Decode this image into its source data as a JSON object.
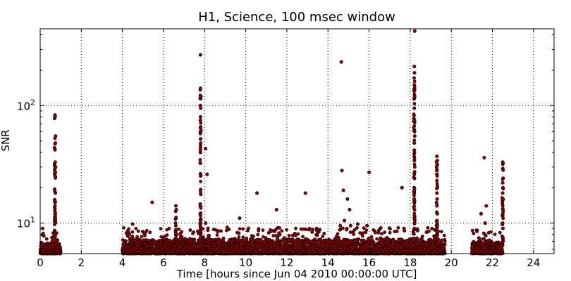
{
  "chart_data": {
    "type": "scatter",
    "title": "H1, Science, 100 msec window",
    "xlabel": "Time [hours since Jun 04 2010 00:00:00 UTC]",
    "ylabel": "SNR",
    "xlim": [
      0,
      25
    ],
    "ylim": [
      5.5,
      450
    ],
    "yscale": "log",
    "grid": true,
    "x_ticks": [
      0,
      2,
      4,
      6,
      8,
      10,
      12,
      14,
      16,
      18,
      20,
      22,
      24
    ],
    "x_tick_labels": [
      "0",
      "2",
      "4",
      "6",
      "8",
      "10",
      "12",
      "14",
      "16",
      "18",
      "20",
      "22",
      "24"
    ],
    "y_ticks": [
      10,
      100
    ],
    "y_tick_labels": [
      {
        "base": "10",
        "exp": "1"
      },
      {
        "base": "10",
        "exp": "2"
      }
    ],
    "marker_fill": "#8b0000",
    "marker_edge": "#000000",
    "dense_background": [
      {
        "x_start": 0.0,
        "x_end": 1.0,
        "snr_floor": 5.5,
        "snr_top": 6.8
      },
      {
        "x_start": 4.0,
        "x_end": 19.7,
        "snr_floor": 5.5,
        "snr_top": 7.3
      },
      {
        "x_start": 21.0,
        "x_end": 22.5,
        "snr_floor": 5.5,
        "snr_top": 7.0
      }
    ],
    "vertical_clusters": [
      {
        "x": 0.72,
        "snr_min": 7,
        "snr_max": 82
      },
      {
        "x": 6.6,
        "snr_min": 7,
        "snr_max": 14
      },
      {
        "x": 7.8,
        "snr_min": 7,
        "snr_max": 140
      },
      {
        "x": 18.2,
        "snr_min": 7,
        "snr_max": 210
      },
      {
        "x": 19.3,
        "snr_min": 7,
        "snr_max": 37
      },
      {
        "x": 22.5,
        "snr_min": 7,
        "snr_max": 33
      }
    ],
    "points": [
      {
        "x": 0.72,
        "y": 83
      },
      {
        "x": 0.73,
        "y": 80
      },
      {
        "x": 0.75,
        "y": 55
      },
      {
        "x": 0.74,
        "y": 48
      },
      {
        "x": 0.72,
        "y": 42
      },
      {
        "x": 0.73,
        "y": 33
      },
      {
        "x": 0.75,
        "y": 30
      },
      {
        "x": 0.74,
        "y": 27
      },
      {
        "x": 0.73,
        "y": 25
      },
      {
        "x": 0.74,
        "y": 18
      },
      {
        "x": 0.72,
        "y": 14
      },
      {
        "x": 0.73,
        "y": 11
      },
      {
        "x": 0.74,
        "y": 10.5
      },
      {
        "x": 0.12,
        "y": 9.0
      },
      {
        "x": 4.5,
        "y": 9.8
      },
      {
        "x": 5.45,
        "y": 15
      },
      {
        "x": 6.6,
        "y": 14
      },
      {
        "x": 6.62,
        "y": 13
      },
      {
        "x": 6.6,
        "y": 9.5
      },
      {
        "x": 6.61,
        "y": 8.8
      },
      {
        "x": 6.6,
        "y": 8.3
      },
      {
        "x": 7.8,
        "y": 270
      },
      {
        "x": 7.8,
        "y": 140
      },
      {
        "x": 7.82,
        "y": 120
      },
      {
        "x": 7.78,
        "y": 115
      },
      {
        "x": 7.8,
        "y": 100
      },
      {
        "x": 7.81,
        "y": 95
      },
      {
        "x": 7.8,
        "y": 80
      },
      {
        "x": 7.79,
        "y": 75
      },
      {
        "x": 7.8,
        "y": 65
      },
      {
        "x": 7.82,
        "y": 60
      },
      {
        "x": 7.8,
        "y": 52
      },
      {
        "x": 7.81,
        "y": 48
      },
      {
        "x": 7.8,
        "y": 44
      },
      {
        "x": 7.79,
        "y": 42
      },
      {
        "x": 7.8,
        "y": 40
      },
      {
        "x": 7.8,
        "y": 12
      },
      {
        "x": 7.81,
        "y": 10.5
      },
      {
        "x": 8.05,
        "y": 43
      },
      {
        "x": 8.12,
        "y": 26
      },
      {
        "x": 8.05,
        "y": 10
      },
      {
        "x": 9.1,
        "y": 9.2
      },
      {
        "x": 9.7,
        "y": 11
      },
      {
        "x": 10.55,
        "y": 18
      },
      {
        "x": 11.5,
        "y": 13
      },
      {
        "x": 11.4,
        "y": 8.5
      },
      {
        "x": 12.9,
        "y": 18
      },
      {
        "x": 13.6,
        "y": 8.8
      },
      {
        "x": 14.65,
        "y": 235
      },
      {
        "x": 14.68,
        "y": 28
      },
      {
        "x": 14.75,
        "y": 19
      },
      {
        "x": 14.8,
        "y": 10.5
      },
      {
        "x": 14.6,
        "y": 9.5
      },
      {
        "x": 14.95,
        "y": 16
      },
      {
        "x": 15.05,
        "y": 13
      },
      {
        "x": 15.1,
        "y": 9.5
      },
      {
        "x": 15.45,
        "y": 9.8
      },
      {
        "x": 15.9,
        "y": 9.5
      },
      {
        "x": 16.0,
        "y": 27
      },
      {
        "x": 17.6,
        "y": 20
      },
      {
        "x": 17.35,
        "y": 8.5
      },
      {
        "x": 17.7,
        "y": 9.0
      },
      {
        "x": 18.22,
        "y": 430
      },
      {
        "x": 18.2,
        "y": 215
      },
      {
        "x": 18.21,
        "y": 190
      },
      {
        "x": 18.2,
        "y": 150
      },
      {
        "x": 18.22,
        "y": 120
      },
      {
        "x": 18.2,
        "y": 95
      },
      {
        "x": 18.21,
        "y": 75
      },
      {
        "x": 18.2,
        "y": 62
      },
      {
        "x": 18.22,
        "y": 55
      },
      {
        "x": 18.2,
        "y": 48
      },
      {
        "x": 18.21,
        "y": 40
      },
      {
        "x": 18.2,
        "y": 34
      },
      {
        "x": 18.22,
        "y": 30
      },
      {
        "x": 18.2,
        "y": 26
      },
      {
        "x": 18.21,
        "y": 24
      },
      {
        "x": 18.2,
        "y": 16
      },
      {
        "x": 18.21,
        "y": 13
      },
      {
        "x": 18.2,
        "y": 11.5
      },
      {
        "x": 18.22,
        "y": 10
      },
      {
        "x": 18.2,
        "y": 9
      },
      {
        "x": 19.3,
        "y": 37
      },
      {
        "x": 19.32,
        "y": 34
      },
      {
        "x": 19.3,
        "y": 28
      },
      {
        "x": 19.31,
        "y": 26
      },
      {
        "x": 19.3,
        "y": 23
      },
      {
        "x": 19.32,
        "y": 20
      },
      {
        "x": 19.3,
        "y": 18
      },
      {
        "x": 19.31,
        "y": 16
      },
      {
        "x": 19.3,
        "y": 14
      },
      {
        "x": 19.32,
        "y": 12
      },
      {
        "x": 19.3,
        "y": 10.5
      },
      {
        "x": 19.31,
        "y": 9.5
      },
      {
        "x": 19.3,
        "y": 8.5
      },
      {
        "x": 21.45,
        "y": 12
      },
      {
        "x": 21.25,
        "y": 8.5
      },
      {
        "x": 21.6,
        "y": 36
      },
      {
        "x": 21.7,
        "y": 14
      },
      {
        "x": 21.65,
        "y": 10
      },
      {
        "x": 22.5,
        "y": 33
      },
      {
        "x": 22.52,
        "y": 24
      },
      {
        "x": 22.5,
        "y": 22
      },
      {
        "x": 22.51,
        "y": 20
      },
      {
        "x": 22.5,
        "y": 18
      },
      {
        "x": 22.52,
        "y": 16
      },
      {
        "x": 22.5,
        "y": 14
      },
      {
        "x": 22.51,
        "y": 13
      },
      {
        "x": 22.5,
        "y": 12
      },
      {
        "x": 22.52,
        "y": 11
      },
      {
        "x": 22.5,
        "y": 10
      },
      {
        "x": 22.51,
        "y": 9
      }
    ]
  }
}
